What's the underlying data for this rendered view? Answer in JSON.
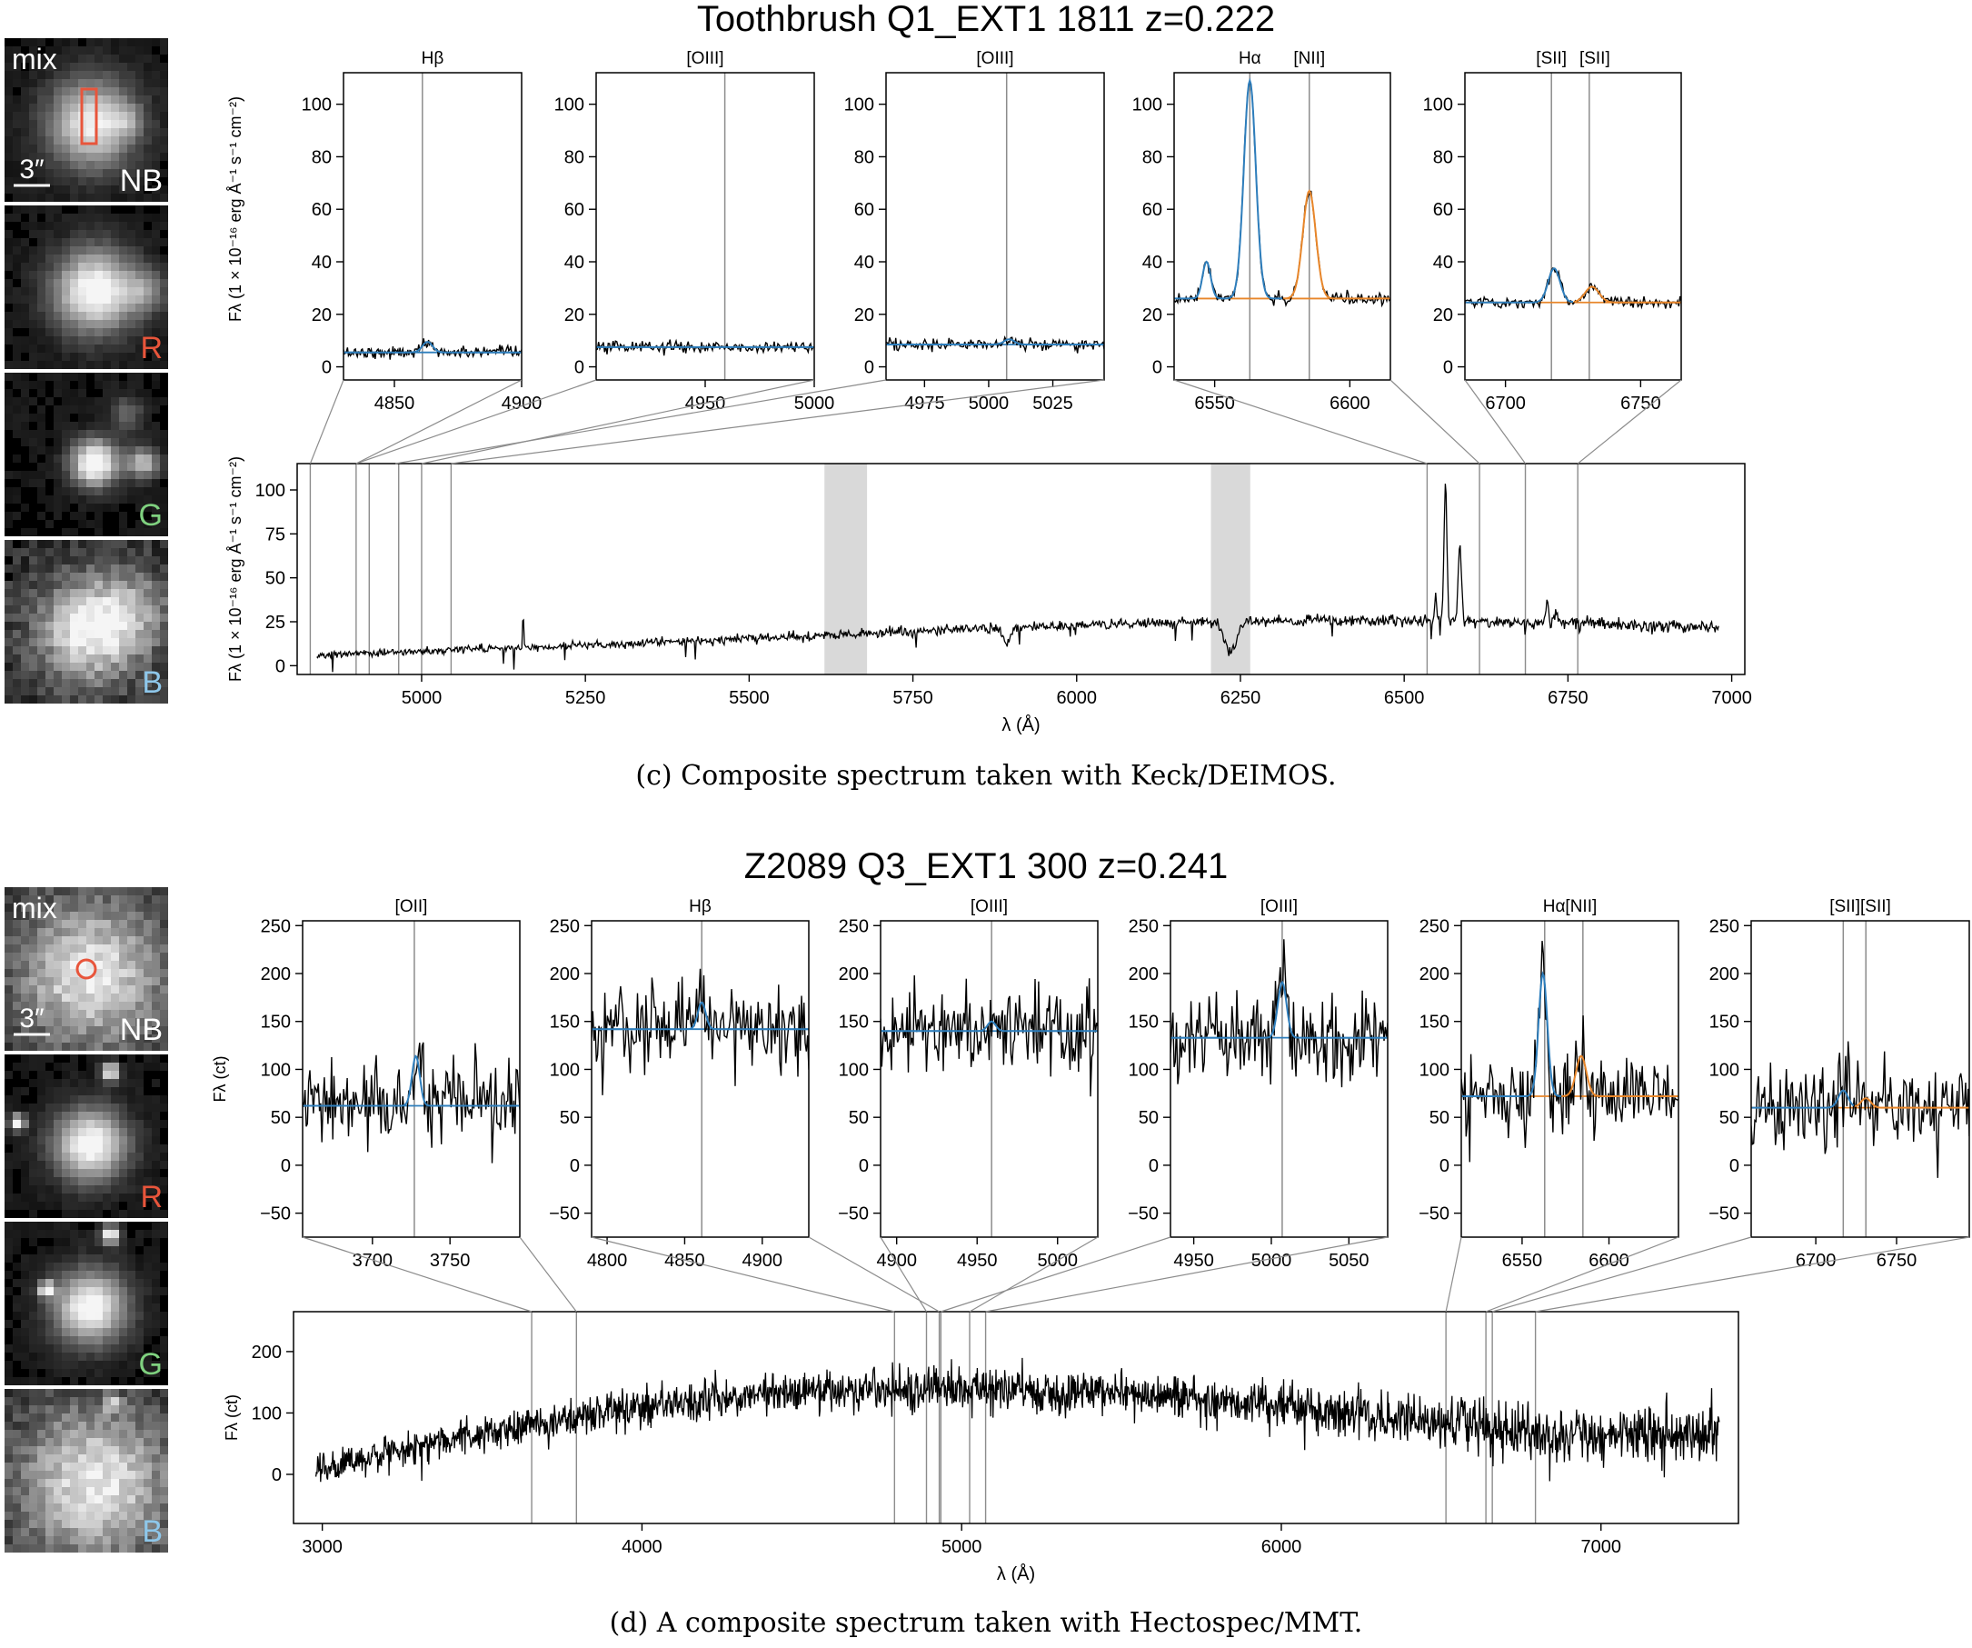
{
  "chart_data": [
    {
      "type": "line",
      "title": "Toothbrush Q1_EXT1 1811 z=0.222",
      "caption": "(c) Composite spectrum taken with Keck/DEIMOS.",
      "thumbnails": [
        {
          "label": "mix",
          "band": "NB",
          "scale_label": "3″",
          "band_color": "#ffffff",
          "aperture": "rectangle",
          "aperture_color": "#e8553b"
        },
        {
          "label": "",
          "band": "R",
          "band_color": "#e8553b"
        },
        {
          "label": "",
          "band": "G",
          "band_color": "#7fd17f"
        },
        {
          "label": "",
          "band": "B",
          "band_color": "#8ec7ea"
        }
      ],
      "insets": [
        {
          "title": "Hβ",
          "xlim": [
            4830,
            4900
          ],
          "xticks": [
            4850,
            4900
          ],
          "ylim": [
            -5,
            112
          ],
          "yticks": [
            0,
            20,
            40,
            60,
            80,
            100
          ],
          "lines": [
            4861
          ],
          "continuum": 5.5,
          "fit_color": "blue",
          "fit_split": null,
          "gauss": [
            {
              "center": 4863,
              "amp": 4,
              "sigma": 2
            }
          ],
          "source_range": [
            4830,
            4900
          ]
        },
        {
          "title": "[OIII]",
          "xlim": [
            4900,
            5000
          ],
          "xticks": [
            4950,
            5000
          ],
          "ylim": [
            -5,
            112
          ],
          "yticks": [
            0,
            20,
            40,
            60,
            80,
            100
          ],
          "lines": [
            4959
          ],
          "continuum": 7.5,
          "fit_color": "blue",
          "fit_split": null,
          "gauss": [],
          "source_range": [
            4900,
            5000
          ]
        },
        {
          "title": "[OIII]",
          "xlim": [
            4960,
            5045
          ],
          "xticks": [
            4975,
            5000,
            5025
          ],
          "ylim": [
            -5,
            112
          ],
          "yticks": [
            0,
            20,
            40,
            60,
            80,
            100
          ],
          "lines": [
            5007
          ],
          "continuum": 8.5,
          "fit_color": "blue",
          "fit_split": null,
          "gauss": [
            {
              "center": 5008,
              "amp": 2,
              "sigma": 2
            }
          ],
          "source_range": [
            4960,
            5045
          ]
        },
        {
          "title": "Hα",
          "title2": "[NII]",
          "xlim": [
            6535,
            6615
          ],
          "xticks": [
            6550,
            6600
          ],
          "ylim": [
            -5,
            112
          ],
          "yticks": [
            0,
            20,
            40,
            60,
            80,
            100
          ],
          "lines": [
            6563,
            6585
          ],
          "continuum": 26,
          "fit_color": "both",
          "fit_split": 6575,
          "gauss": [
            {
              "center": 6563,
              "amp": 83,
              "sigma": 2.2
            },
            {
              "center": 6585,
              "amp": 41,
              "sigma": 2.4
            },
            {
              "center": 6547,
              "amp": 14,
              "sigma": 1.5
            }
          ],
          "source_range": [
            6535,
            6615
          ]
        },
        {
          "title": "[SII]",
          "title2": "[SII]",
          "xlim": [
            6685,
            6765
          ],
          "xticks": [
            6700,
            6750
          ],
          "ylim": [
            -5,
            112
          ],
          "yticks": [
            0,
            20,
            40,
            60,
            80,
            100
          ],
          "lines": [
            6717,
            6731
          ],
          "continuum": 24.5,
          "fit_color": "both",
          "fit_split": 6725,
          "gauss": [
            {
              "center": 6718,
              "amp": 13,
              "sigma": 2.2
            },
            {
              "center": 6732,
              "amp": 6,
              "sigma": 2.6
            }
          ],
          "source_range": [
            6685,
            6765
          ]
        }
      ],
      "inset_ylabel": "Fλ (1 × 10⁻¹⁶ erg Å⁻¹ s⁻¹ cm⁻²)",
      "main": {
        "xlim": [
          4810,
          7020
        ],
        "xticks": [
          5000,
          5250,
          5500,
          5750,
          6000,
          6250,
          6500,
          6750,
          7000
        ],
        "ylim": [
          -5,
          115
        ],
        "yticks": [
          0,
          25,
          50,
          75,
          100
        ],
        "xlabel": "λ (Å)",
        "ylabel": "Fλ (1 × 10⁻¹⁶ erg Å⁻¹ s⁻¹ cm⁻²)",
        "shaded": [
          [
            5615,
            5680
          ],
          [
            6205,
            6265
          ]
        ],
        "span": [
          4840,
          6980
        ],
        "continuum": [
          [
            4840,
            6
          ],
          [
            5200,
            11
          ],
          [
            5600,
            17
          ],
          [
            5900,
            22
          ],
          [
            6200,
            25
          ],
          [
            6500,
            26
          ],
          [
            6980,
            22
          ]
        ],
        "features": [
          {
            "center": 6563,
            "amp": 80,
            "sigma": 2.2
          },
          {
            "center": 6585,
            "amp": 42,
            "sigma": 2.5
          },
          {
            "center": 6548,
            "amp": 14,
            "sigma": 1.5
          },
          {
            "center": 6718,
            "amp": 11,
            "sigma": 2.5
          },
          {
            "center": 6732,
            "amp": 6,
            "sigma": 2.5
          },
          {
            "center": 5155,
            "amp": 22,
            "sigma": 0.8
          },
          {
            "center": 5893,
            "amp": -10,
            "sigma": 5
          },
          {
            "center": 6235,
            "amp": -18,
            "sigma": 9
          }
        ],
        "noise": 1.8,
        "markers": [
          4830,
          4900,
          4920,
          4965,
          5000,
          5045,
          6535,
          6615,
          6685,
          6765
        ]
      }
    },
    {
      "type": "line",
      "title": "Z2089 Q3_EXT1 300 z=0.241",
      "caption": "(d) A composite spectrum taken with Hectospec/MMT.",
      "thumbnails": [
        {
          "label": "mix",
          "band": "NB",
          "scale_label": "3″",
          "band_color": "#ffffff",
          "aperture": "circle",
          "aperture_color": "#e8553b"
        },
        {
          "label": "",
          "band": "R",
          "band_color": "#e8553b"
        },
        {
          "label": "",
          "band": "G",
          "band_color": "#7fd17f"
        },
        {
          "label": "",
          "band": "B",
          "band_color": "#8ec7ea"
        }
      ],
      "insets": [
        {
          "title": "[OII]",
          "xlim": [
            3655,
            3795
          ],
          "xticks": [
            3700,
            3750
          ],
          "ylim": [
            -75,
            255
          ],
          "yticks": [
            -50,
            0,
            50,
            100,
            150,
            200,
            250
          ],
          "lines": [
            3727
          ],
          "continuum": 62,
          "fit_color": "blue",
          "fit_split": null,
          "gauss": [
            {
              "center": 3728,
              "amp": 52,
              "sigma": 2.5
            }
          ],
          "source_range": [
            3655,
            3795
          ]
        },
        {
          "title": "Hβ",
          "xlim": [
            4790,
            4930
          ],
          "xticks": [
            4800,
            4850,
            4900
          ],
          "ylim": [
            -75,
            255
          ],
          "yticks": [
            -50,
            0,
            50,
            100,
            150,
            200,
            250
          ],
          "lines": [
            4861
          ],
          "continuum": 142,
          "fit_color": "blue",
          "fit_split": null,
          "gauss": [
            {
              "center": 4861,
              "amp": 28,
              "sigma": 2.5
            }
          ],
          "source_range": [
            4790,
            4930
          ]
        },
        {
          "title": "[OIII]",
          "xlim": [
            4890,
            5025
          ],
          "xticks": [
            4900,
            4950,
            5000
          ],
          "ylim": [
            -75,
            255
          ],
          "yticks": [
            -50,
            0,
            50,
            100,
            150,
            200,
            250
          ],
          "lines": [
            4959
          ],
          "continuum": 140,
          "fit_color": "blue",
          "fit_split": null,
          "gauss": [
            {
              "center": 4959,
              "amp": 10,
              "sigma": 2.5
            }
          ],
          "source_range": [
            4890,
            5025
          ]
        },
        {
          "title": "[OIII]",
          "xlim": [
            4935,
            5075
          ],
          "xticks": [
            4950,
            5000,
            5050
          ],
          "ylim": [
            -75,
            255
          ],
          "yticks": [
            -50,
            0,
            50,
            100,
            150,
            200,
            250
          ],
          "lines": [
            5007
          ],
          "continuum": 133,
          "fit_color": "blue",
          "fit_split": null,
          "gauss": [
            {
              "center": 5007,
              "amp": 58,
              "sigma": 2.8
            }
          ],
          "source_range": [
            4935,
            5075
          ]
        },
        {
          "title": "Hα[NII]",
          "xlim": [
            6515,
            6640
          ],
          "xticks": [
            6550,
            6600
          ],
          "ylim": [
            -75,
            255
          ],
          "yticks": [
            -50,
            0,
            50,
            100,
            150,
            200,
            250
          ],
          "lines": [
            6563,
            6585
          ],
          "continuum": 72,
          "fit_color": "both",
          "fit_split": 6573,
          "gauss": [
            {
              "center": 6562,
              "amp": 128,
              "sigma": 2.5
            },
            {
              "center": 6584,
              "amp": 42,
              "sigma": 3
            }
          ],
          "source_range": [
            6515,
            6640
          ]
        },
        {
          "title": "[SII][SII]",
          "xlim": [
            6660,
            6795
          ],
          "xticks": [
            6700,
            6750
          ],
          "ylim": [
            -75,
            255
          ],
          "yticks": [
            -50,
            0,
            50,
            100,
            150,
            200,
            250
          ],
          "lines": [
            6717,
            6731
          ],
          "continuum": 60,
          "fit_color": "both",
          "fit_split": 6724,
          "gauss": [
            {
              "center": 6717,
              "amp": 18,
              "sigma": 3
            },
            {
              "center": 6731,
              "amp": 10,
              "sigma": 3
            }
          ],
          "source_range": [
            6660,
            6795
          ]
        }
      ],
      "inset_ylabel": "Fλ (ct)",
      "main": {
        "xlim": [
          2910,
          7430
        ],
        "xticks": [
          3000,
          4000,
          5000,
          6000,
          7000
        ],
        "ylim": [
          -80,
          265
        ],
        "yticks": [
          0,
          100,
          200
        ],
        "xlabel": "λ (Å)",
        "ylabel": "Fλ (ct)",
        "shaded": [],
        "span": [
          2980,
          7370
        ],
        "continuum": [
          [
            2980,
            12
          ],
          [
            3200,
            35
          ],
          [
            3600,
            75
          ],
          [
            4000,
            108
          ],
          [
            4500,
            138
          ],
          [
            5000,
            140
          ],
          [
            5500,
            132
          ],
          [
            6000,
            112
          ],
          [
            6500,
            85
          ],
          [
            6800,
            62
          ],
          [
            7370,
            70
          ]
        ],
        "features": [
          {
            "center": 6563,
            "amp": 45,
            "sigma": 4
          }
        ],
        "noise": 22,
        "markers": [
          3655,
          3795,
          4790,
          4890,
          4930,
          4935,
          5025,
          5075,
          6515,
          6640,
          6660,
          6795
        ]
      }
    }
  ]
}
